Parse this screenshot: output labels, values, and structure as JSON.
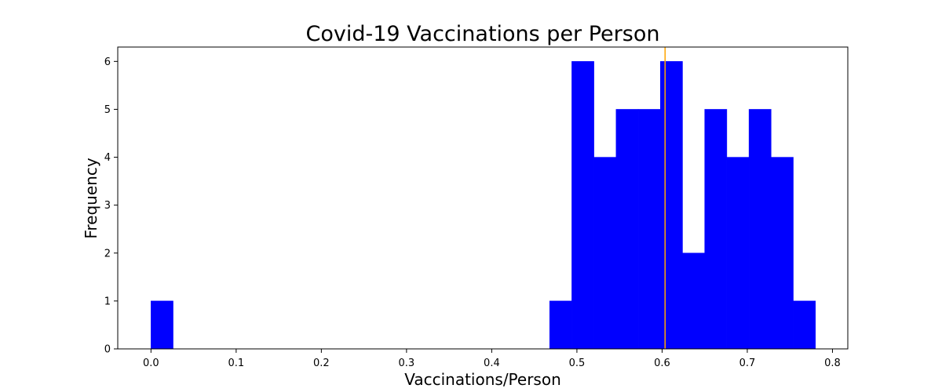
{
  "chart_data": {
    "type": "bar",
    "title": "Covid-19 Vaccinations per Person",
    "xlabel": "Vaccinations/Person",
    "ylabel": "Frequency",
    "xlim": [
      -0.039,
      0.818
    ],
    "ylim": [
      0,
      6.3
    ],
    "x_ticks": [
      0.0,
      0.1,
      0.2,
      0.3,
      0.4,
      0.5,
      0.6,
      0.7,
      0.8
    ],
    "x_tick_labels": [
      "0.0",
      "0.1",
      "0.2",
      "0.3",
      "0.4",
      "0.5",
      "0.6",
      "0.7",
      "0.8"
    ],
    "y_ticks": [
      0,
      1,
      2,
      3,
      4,
      5,
      6
    ],
    "y_tick_labels": [
      "0",
      "1",
      "2",
      "3",
      "4",
      "5",
      "6"
    ],
    "grid": false,
    "bar_color": "#0000ff",
    "bins": [
      {
        "start": 0.0,
        "end": 0.026,
        "value": 1
      },
      {
        "start": 0.468,
        "end": 0.494,
        "value": 1
      },
      {
        "start": 0.494,
        "end": 0.52,
        "value": 6
      },
      {
        "start": 0.52,
        "end": 0.546,
        "value": 4
      },
      {
        "start": 0.546,
        "end": 0.572,
        "value": 5
      },
      {
        "start": 0.572,
        "end": 0.598,
        "value": 5
      },
      {
        "start": 0.598,
        "end": 0.624,
        "value": 6
      },
      {
        "start": 0.624,
        "end": 0.65,
        "value": 2
      },
      {
        "start": 0.65,
        "end": 0.676,
        "value": 5
      },
      {
        "start": 0.676,
        "end": 0.702,
        "value": 4
      },
      {
        "start": 0.702,
        "end": 0.728,
        "value": 5
      },
      {
        "start": 0.728,
        "end": 0.754,
        "value": 4
      },
      {
        "start": 0.754,
        "end": 0.78,
        "value": 1
      }
    ],
    "reference_line": {
      "x": 0.6035,
      "color": "#ffa500"
    }
  }
}
